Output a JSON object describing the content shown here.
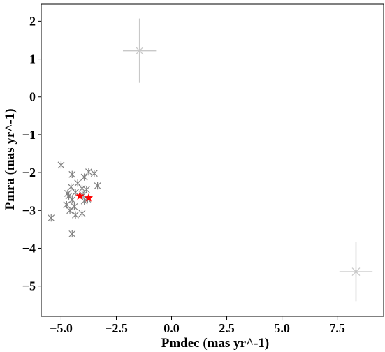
{
  "chart_data": {
    "type": "scatter",
    "title": "",
    "xlabel": "Pmdec (mas yr^-1)",
    "ylabel": "Pmra (mas yr^-1)",
    "xlim": [
      -5.9,
      9.6
    ],
    "ylim": [
      -5.8,
      2.45
    ],
    "xticks": [
      -5.0,
      -2.5,
      0.0,
      2.5,
      5.0,
      7.5
    ],
    "xtick_labels": [
      "−5.0",
      "−2.5",
      "0.0",
      "2.5",
      "5.0",
      "7.5"
    ],
    "yticks": [
      2,
      1,
      0,
      -1,
      -2,
      -3,
      -4,
      -5
    ],
    "ytick_labels": [
      "2",
      "1",
      "0",
      "−1",
      "−2",
      "−3",
      "−4",
      "−5"
    ],
    "grid": false,
    "legend": "none",
    "colors": {
      "members": "#808080",
      "errorbar": "#c8c8c8",
      "highlight": "#ff0000",
      "axes": "#000000"
    },
    "series": [
      {
        "marker": "x-star",
        "color": "#808080",
        "points": [
          {
            "x": -5.0,
            "y": -1.8
          },
          {
            "x": -4.5,
            "y": -2.05
          },
          {
            "x": -3.75,
            "y": -1.98
          },
          {
            "x": -3.5,
            "y": -2.02
          },
          {
            "x": -3.35,
            "y": -2.35
          },
          {
            "x": -3.95,
            "y": -2.12
          },
          {
            "x": -4.25,
            "y": -2.28
          },
          {
            "x": -4.05,
            "y": -2.42
          },
          {
            "x": -3.85,
            "y": -2.45
          },
          {
            "x": -4.55,
            "y": -2.38
          },
          {
            "x": -4.35,
            "y": -2.52
          },
          {
            "x": -4.65,
            "y": -2.62
          },
          {
            "x": -4.5,
            "y": -2.72
          },
          {
            "x": -4.75,
            "y": -2.85
          },
          {
            "x": -4.4,
            "y": -2.9
          },
          {
            "x": -4.0,
            "y": -2.6
          },
          {
            "x": -3.95,
            "y": -2.75
          },
          {
            "x": -3.8,
            "y": -2.7
          },
          {
            "x": -4.6,
            "y": -3.0
          },
          {
            "x": -4.35,
            "y": -3.12
          },
          {
            "x": -4.05,
            "y": -3.08
          },
          {
            "x": -5.45,
            "y": -3.2
          },
          {
            "x": -4.5,
            "y": -3.62
          },
          {
            "x": -4.7,
            "y": -2.55
          }
        ]
      },
      {
        "marker": "x-star",
        "color": "#c8c8c8",
        "size": "large",
        "points": [
          {
            "x": -1.45,
            "y": 1.22,
            "xerr": 0.75,
            "yerr": 0.85
          },
          {
            "x": 8.35,
            "y": -4.62,
            "xerr": 0.75,
            "yerr": 0.78
          }
        ]
      },
      {
        "marker": "star",
        "color": "#ff0000",
        "points": [
          {
            "x": -4.15,
            "y": -2.62
          },
          {
            "x": -3.75,
            "y": -2.67
          }
        ]
      }
    ]
  }
}
